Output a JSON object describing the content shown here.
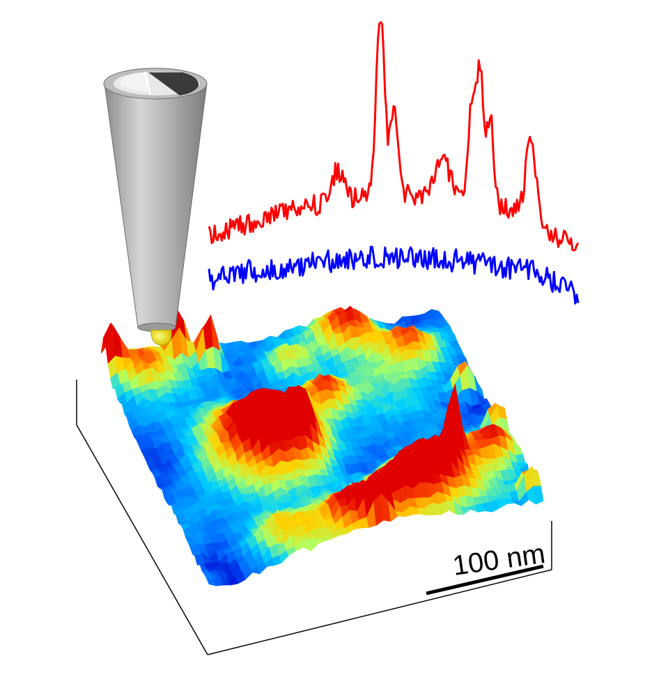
{
  "figure": {
    "scale_bar": {
      "label": "100 nm"
    },
    "spectra": [
      {
        "name": "",
        "color": "#ff0000"
      },
      {
        "name": "",
        "color": "#0000ff"
      }
    ],
    "surface": {
      "colormap": [
        "#0000d0",
        "#0070ff",
        "#00d0ff",
        "#b0ff60",
        "#ffd000",
        "#ff5000",
        "#e00000"
      ]
    },
    "probe": {
      "tip_color": "#f0e000",
      "body_color": "#a8a8a8"
    }
  }
}
